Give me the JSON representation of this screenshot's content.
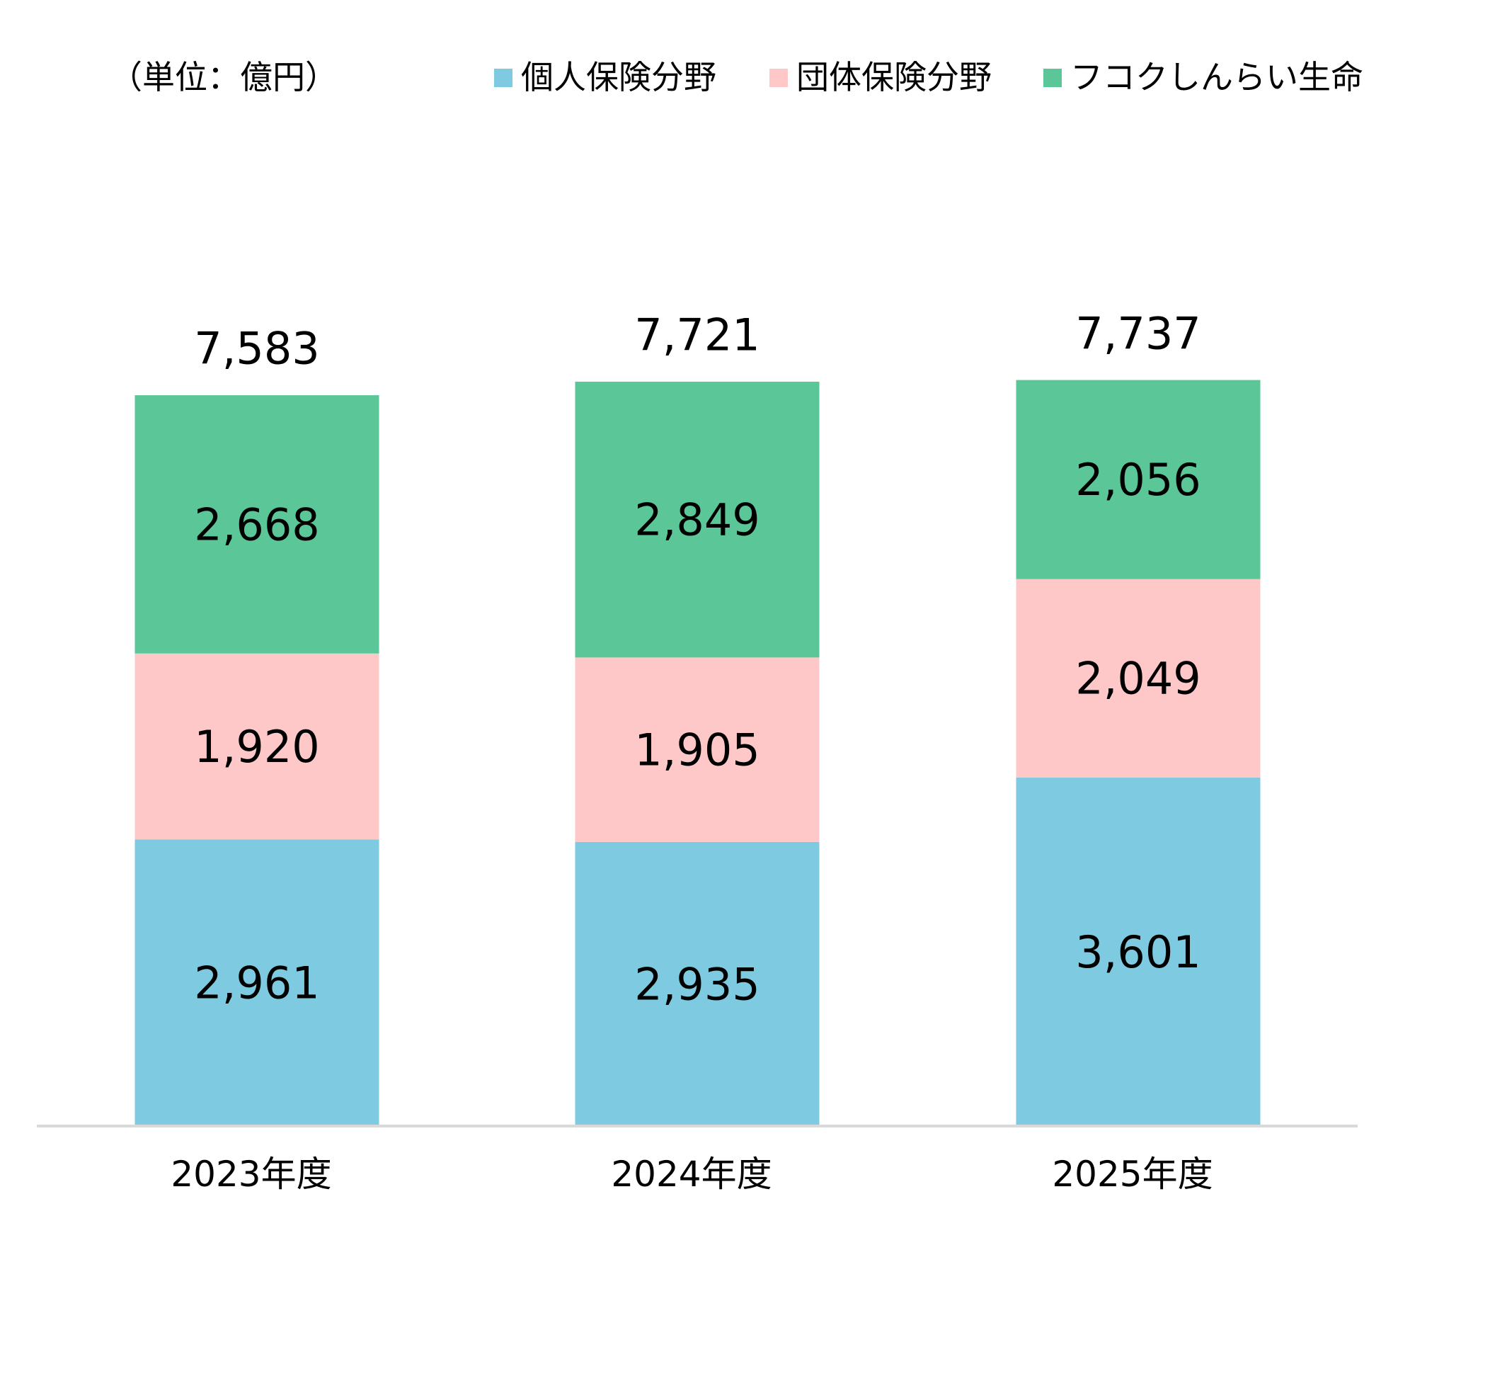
{
  "chart_data": {
    "type": "bar",
    "stacked": true,
    "unit_label": "（単位：億円）",
    "categories": [
      "2023年度",
      "2024年度",
      "2025年度"
    ],
    "series": [
      {
        "name": "個人保険分野",
        "color": "#7ecae0",
        "values": [
          2961,
          2935,
          3601
        ]
      },
      {
        "name": "団体保険分野",
        "color": "#fec8c8",
        "values": [
          1920,
          1905,
          2049
        ]
      },
      {
        "name": "フコクしんらい生命",
        "color": "#5bc697",
        "values": [
          2668,
          2849,
          2056
        ]
      }
    ],
    "totals": [
      7583,
      7721,
      7737
    ],
    "legend_position": "top",
    "grid": false,
    "ylim": [
      0,
      10900
    ],
    "axis_color": "#d9d9d9"
  }
}
